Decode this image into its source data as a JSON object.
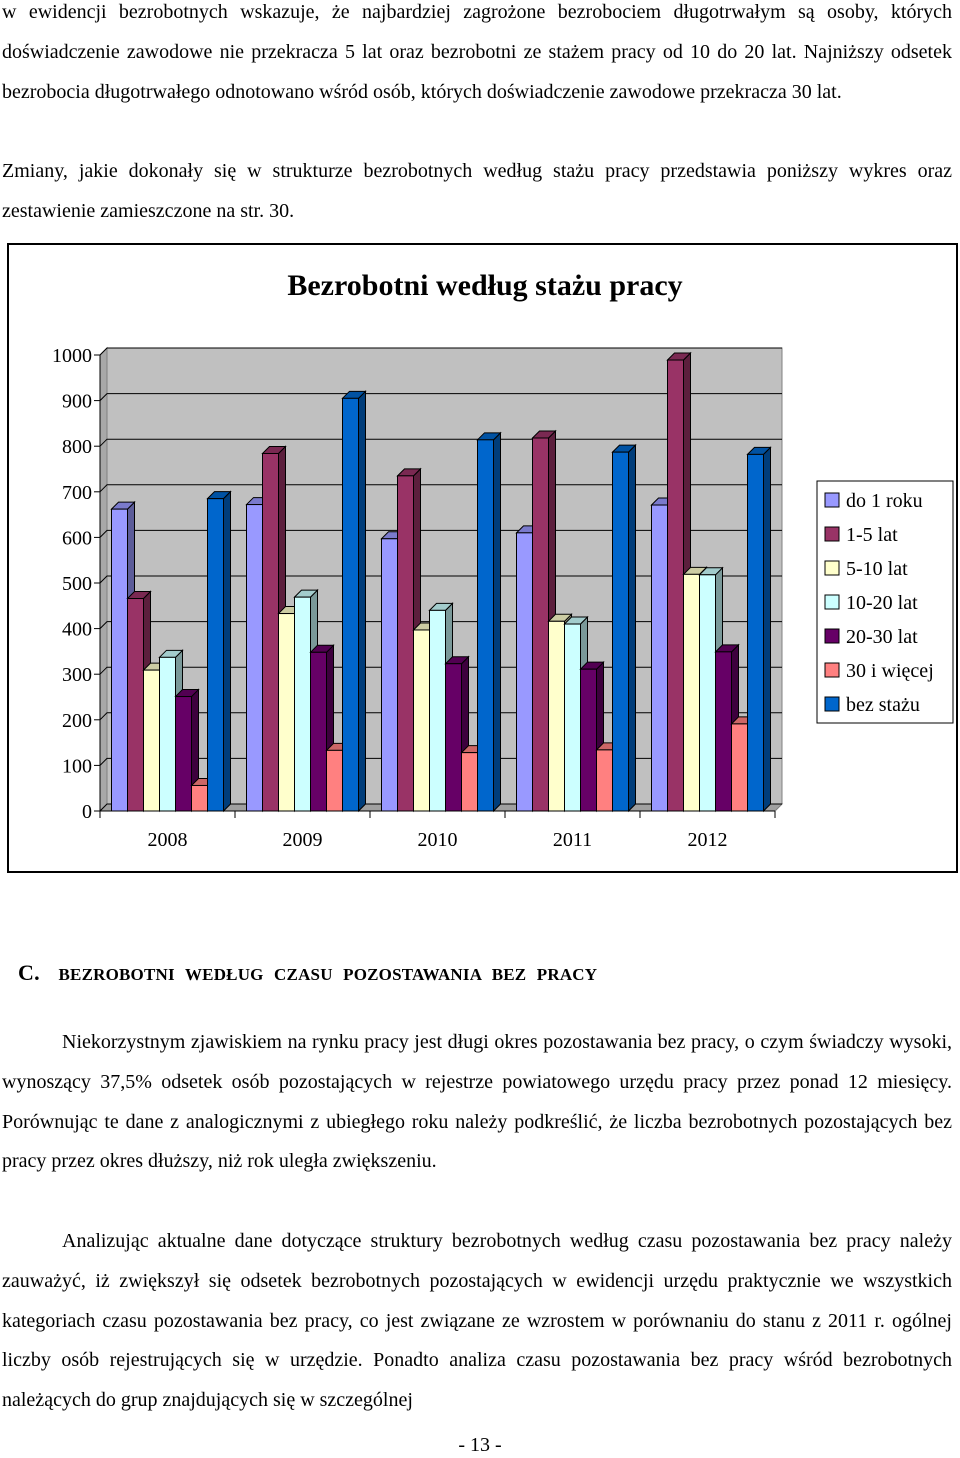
{
  "text": {
    "p1": "w ewidencji bezrobotnych wskazuje, że najbardziej zagrożone bezrobociem długotrwałym są osoby, których doświadczenie zawodowe nie przekracza 5 lat oraz bezrobotni ze stażem pracy od 10 do 20 lat. Najniższy odsetek bezrobocia długotrwałego odnotowano wśród osób, których doświadczenie zawodowe przekracza 30 lat.",
    "p2": "Zmiany, jakie dokonały się w strukturze bezrobotnych według stażu pracy przedstawia poniższy wykres oraz zestawienie zamieszczone na str. 30.",
    "section_label": "C.",
    "section_title": "BEZROBOTNI WEDŁUG CZASU POZOSTAWANIA BEZ PRACY",
    "p3": "Niekorzystnym zjawiskiem na rynku pracy jest długi okres pozostawania bez pracy, o czym świadczy wysoki, wynoszący 37,5% odsetek osób pozostających w rejestrze powiatowego urzędu pracy przez ponad 12 miesięcy. Porównując te dane z analogicznymi z ubiegłego roku należy podkreślić, że liczba bezrobotnych pozostających bez pracy przez okres dłuższy, niż rok uległa zwiększeniu.",
    "p4": "Analizując aktualne dane dotyczące struktury bezrobotnych według czasu pozostawania bez pracy należy zauważyć, iż zwiększył się odsetek bezrobotnych pozostających w ewidencji urzędu praktycznie we wszystkich kategoriach czasu pozostawania bez pracy, co jest związane ze wzrostem w porównaniu do stanu z 2011 r. ogólnej liczby osób rejestrujących się w urzędzie. Ponadto analiza czasu pozostawania bez pracy wśród bezrobotnych należących do grup znajdujących się w szczególnej",
    "page_number": "- 13 -"
  },
  "chart_data": {
    "type": "bar",
    "title": "Bezrobotni według stażu pracy",
    "categories": [
      "2008",
      "2009",
      "2010",
      "2011",
      "2012"
    ],
    "series": [
      {
        "name": "do 1 roku",
        "color": "#9999ff",
        "values": [
          662,
          672,
          597,
          610,
          671
        ]
      },
      {
        "name": "1-5 lat",
        "color": "#993366",
        "values": [
          466,
          784,
          735,
          818,
          989
        ]
      },
      {
        "name": "5-10 lat",
        "color": "#ffffcc",
        "values": [
          309,
          433,
          397,
          416,
          519
        ]
      },
      {
        "name": "10-20 lat",
        "color": "#ccffff",
        "values": [
          337,
          469,
          440,
          410,
          518
        ]
      },
      {
        "name": "20-30 lat",
        "color": "#660066",
        "values": [
          251,
          348,
          323,
          311,
          349
        ]
      },
      {
        "name": "30 i więcej",
        "color": "#ff8080",
        "values": [
          56,
          133,
          128,
          134,
          191
        ]
      },
      {
        "name": "bez stażu",
        "color": "#0066cc",
        "values": [
          685,
          905,
          814,
          787,
          782
        ]
      }
    ],
    "y_ticks": [
      "0",
      "100",
      "200",
      "300",
      "400",
      "500",
      "600",
      "700",
      "800",
      "900",
      "1000"
    ],
    "ylim": [
      0,
      1000
    ],
    "grid": true,
    "legend_position": "right",
    "style": "3d-column"
  }
}
